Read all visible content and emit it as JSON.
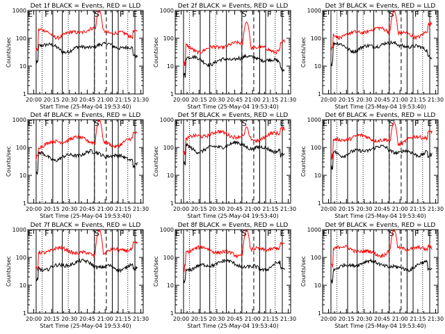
{
  "figure": {
    "x_axis_title": "Start Time (25-May-04 19:53:40)",
    "y_axis_title": "Counts/sec",
    "x_tick_labels": [
      "20:00",
      "20:15",
      "20:30",
      "20:45",
      "21:00",
      "21:15",
      "21:30"
    ],
    "y_tick_labels": [
      "1",
      "10",
      "100",
      "1000"
    ],
    "interval_labels": [
      "E",
      "F",
      "S",
      "F",
      "E"
    ]
  },
  "chart_data": [
    {
      "type": "line",
      "title": "Det 1f BLACK = Events, RED = LLD",
      "xlabel": "Start Time (25-May-04 19:53:40)",
      "ylabel": "Counts/sec",
      "scale_y": "log",
      "ylim": [
        1,
        1000
      ],
      "xlim": [
        "19:55",
        "21:32"
      ],
      "series": [
        {
          "color": "#000000",
          "base": 50
        },
        {
          "color": "#ff0000",
          "base": 170
        }
      ],
      "spike_peak": 1000
    },
    {
      "type": "line",
      "title": "Det 2f BLACK = Events, RED = LLD",
      "xlabel": "Start Time (25-May-04 19:53:40)",
      "ylabel": "Counts/sec",
      "scale_y": "log",
      "ylim": [
        1,
        1000
      ],
      "xlim": [
        "19:55",
        "21:32"
      ],
      "series": [
        {
          "color": "#000000",
          "base": 18
        },
        {
          "color": "#ff0000",
          "base": 50
        }
      ],
      "spike_peak": 380
    },
    {
      "type": "line",
      "title": "Det 3f BLACK = Events, RED = LLD",
      "xlabel": "Start Time (25-May-04 19:53:40)",
      "ylabel": "Counts/sec",
      "scale_y": "log",
      "ylim": [
        1,
        1000
      ],
      "xlim": [
        "19:55",
        "21:32"
      ],
      "series": [
        {
          "color": "#000000",
          "base": 55
        },
        {
          "color": "#ff0000",
          "base": 170
        }
      ],
      "spike_peak": 1000
    },
    {
      "type": "line",
      "title": "Det 4f BLACK = Events, RED = LLD",
      "xlabel": "Start Time (25-May-04 19:53:40)",
      "ylabel": "Counts/sec",
      "scale_y": "log",
      "ylim": [
        1,
        1000
      ],
      "xlim": [
        "19:55",
        "21:32"
      ],
      "series": [
        {
          "color": "#000000",
          "base": 55
        },
        {
          "color": "#ff0000",
          "base": 170
        }
      ],
      "spike_peak": 1000
    },
    {
      "type": "line",
      "title": "Det 5f BLACK = Events, RED = LLD",
      "xlabel": "Start Time (25-May-04 19:53:40)",
      "ylabel": "Counts/sec",
      "scale_y": "log",
      "ylim": [
        1,
        1000
      ],
      "xlim": [
        "19:55",
        "21:32"
      ],
      "series": [
        {
          "color": "#000000",
          "base": 110
        },
        {
          "color": "#ff0000",
          "base": 270
        }
      ],
      "spike_peak": 550
    },
    {
      "type": "line",
      "title": "Det 6f BLACK = Events, RED = LLD",
      "xlabel": "Start Time (25-May-04 19:53:40)",
      "ylabel": "Counts/sec",
      "scale_y": "log",
      "ylim": [
        1,
        1000
      ],
      "xlim": [
        "19:55",
        "21:32"
      ],
      "series": [
        {
          "color": "#000000",
          "base": 80
        },
        {
          "color": "#ff0000",
          "base": 200
        }
      ],
      "spike_peak": 800
    },
    {
      "type": "line",
      "title": "Det 7f BLACK = Events, RED = LLD",
      "xlabel": "Start Time (25-May-04 19:53:40)",
      "ylabel": "Counts/sec",
      "scale_y": "log",
      "ylim": [
        1,
        1000
      ],
      "xlim": [
        "19:55",
        "21:32"
      ],
      "series": [
        {
          "color": "#000000",
          "base": 55
        },
        {
          "color": "#ff0000",
          "base": 160
        }
      ],
      "spike_peak": 1000
    },
    {
      "type": "line",
      "title": "Det 8f BLACK = Events, RED = LLD",
      "xlabel": "Start Time (25-May-04 19:53:40)",
      "ylabel": "Counts/sec",
      "scale_y": "log",
      "ylim": [
        1,
        1000
      ],
      "xlim": [
        "19:55",
        "21:32"
      ],
      "series": [
        {
          "color": "#000000",
          "base": 55
        },
        {
          "color": "#ff0000",
          "base": 170
        }
      ],
      "spike_peak": 1000
    },
    {
      "type": "line",
      "title": "Det 9f BLACK = Events, RED = LLD",
      "xlabel": "Start Time (25-May-04 19:53:40)",
      "ylabel": "Counts/sec",
      "scale_y": "log",
      "ylim": [
        1,
        1000
      ],
      "xlim": [
        "19:55",
        "21:32"
      ],
      "series": [
        {
          "color": "#000000",
          "base": 55
        },
        {
          "color": "#ff0000",
          "base": 180
        }
      ],
      "spike_peak": 1000
    }
  ]
}
